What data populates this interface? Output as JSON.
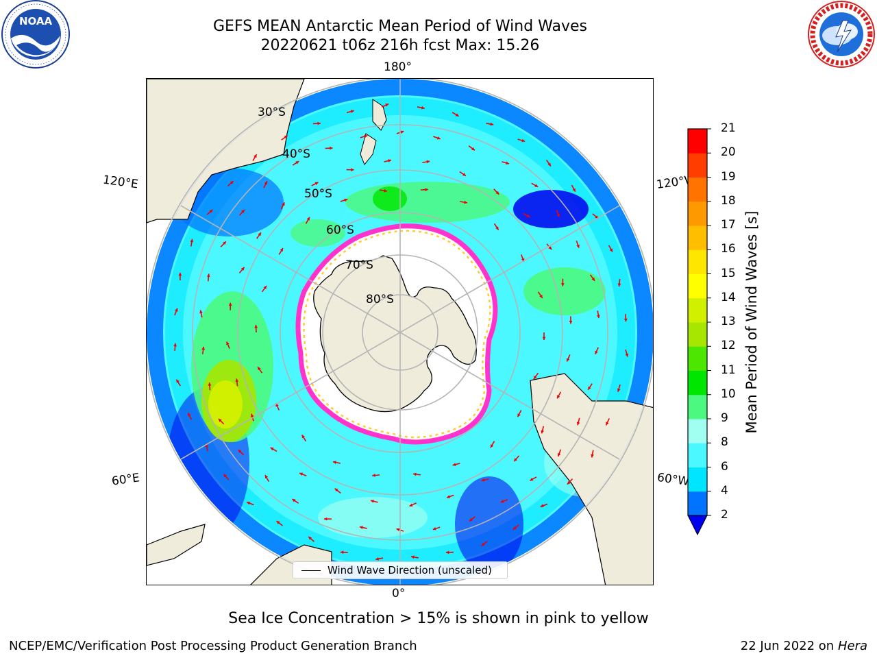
{
  "title_line1": "GEFS MEAN Antarctic Mean Period of Wind Waves",
  "title_line2": "20220621 t06z 216h fcst   Max: 15.26",
  "logos": {
    "noaa": {
      "text": "NOAA",
      "ring_text": "NATIONAL OCEANIC AND ATMOSPHERIC ADMINISTRATION · U.S. DEPARTMENT OF COMMERCE"
    },
    "nws": {
      "ring_text": "NATIONAL WEATHER SERVICE"
    }
  },
  "map": {
    "longitude_labels": {
      "top": "180°",
      "bottom": "0°",
      "upper_left": "120°E",
      "upper_right": "120°W",
      "lower_left": "60°E",
      "lower_right": "60°W"
    },
    "latitude_labels": [
      "30°S",
      "40°S",
      "50°S",
      "60°S",
      "70°S",
      "80°S"
    ],
    "colors": {
      "land": "#efecdc",
      "ice_fill": "#ffffff",
      "ice_edge": [
        "#ff33cc",
        "#ffaaff",
        "#ffcc33"
      ],
      "arrow": "#ee0000",
      "gridline": "#b4b4b4"
    },
    "legend_text": "Wind Wave Direction (unscaled)"
  },
  "colorbar": {
    "label": "Mean Period of Wind Waves [s]",
    "ticks": [
      "2",
      "4",
      "6",
      "8",
      "9",
      "10",
      "11",
      "12",
      "13",
      "14",
      "15",
      "16",
      "17",
      "18",
      "19",
      "20",
      "21"
    ],
    "colors": [
      "#0073ff",
      "#00e5ff",
      "#4cf8ff",
      "#a0fff0",
      "#4cf880",
      "#00e600",
      "#4de600",
      "#a6e600",
      "#d0f000",
      "#ffff00",
      "#ffe600",
      "#ffbf00",
      "#ff9900",
      "#ff7300",
      "#ff3d00",
      "#ff0000"
    ],
    "extend_color": "#0000ee"
  },
  "caption": "Sea Ice Concentration > 15% is shown in pink to yellow",
  "footer_left": "NCEP/EMC/Verification Post Processing Product Generation Branch",
  "footer_right_date": "22 Jun 2022 on",
  "footer_right_host": "Hera"
}
